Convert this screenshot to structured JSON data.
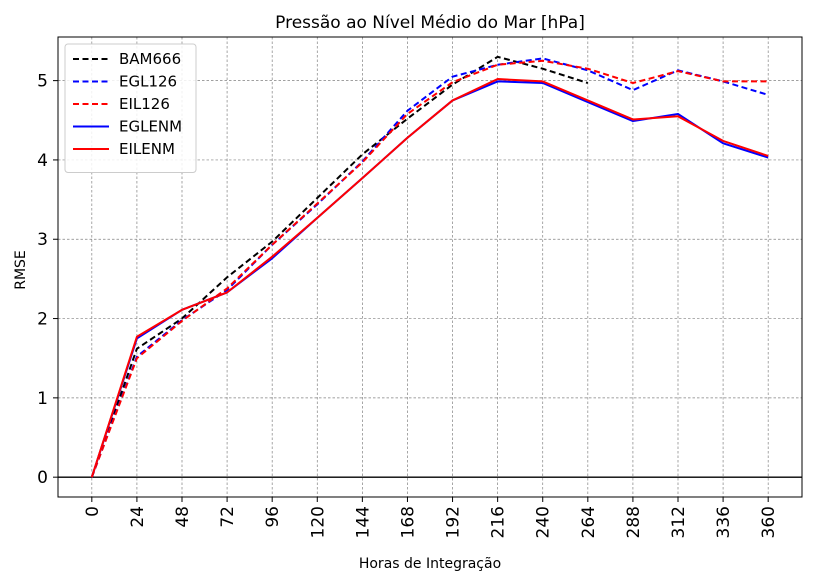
{
  "chart_data": {
    "type": "line",
    "title": "Pressão ao Nível Médio do Mar [hPa]",
    "xlabel": "Horas de Integração",
    "ylabel": "RMSE",
    "x": [
      0,
      24,
      48,
      72,
      96,
      120,
      144,
      168,
      192,
      216,
      240,
      264,
      288,
      312,
      336,
      360
    ],
    "x_tick_labels": [
      "0",
      "24",
      "48",
      "72",
      "96",
      "120",
      "144",
      "168",
      "192",
      "216",
      "240",
      "264",
      "288",
      "312",
      "336",
      "360"
    ],
    "y_ticks": [
      0,
      1,
      2,
      3,
      4,
      5
    ],
    "y_tick_labels": [
      "0",
      "1",
      "2",
      "3",
      "4",
      "5"
    ],
    "xlim": [
      -18,
      378
    ],
    "ylim": [
      -0.25,
      5.55
    ],
    "grid": true,
    "legend_position": "top-left",
    "series": [
      {
        "name": "BAM666",
        "color": "#000000",
        "style": "dashed",
        "values": [
          0,
          1.62,
          2.0,
          2.52,
          2.97,
          3.52,
          4.07,
          4.52,
          4.95,
          5.3,
          5.15,
          4.97,
          null,
          null,
          null,
          null
        ]
      },
      {
        "name": "EGL126",
        "color": "#0000ff",
        "style": "dashed",
        "values": [
          0,
          1.52,
          1.98,
          2.36,
          2.93,
          3.44,
          3.98,
          4.62,
          5.05,
          5.2,
          5.28,
          5.13,
          4.88,
          5.13,
          4.99,
          4.82
        ]
      },
      {
        "name": "EIL126",
        "color": "#ff0000",
        "style": "dashed",
        "values": [
          0,
          1.5,
          1.97,
          2.38,
          2.93,
          3.45,
          3.97,
          4.58,
          4.98,
          5.2,
          5.25,
          5.15,
          4.97,
          5.12,
          4.99,
          4.99
        ]
      },
      {
        "name": "EGLENM",
        "color": "#0000ff",
        "style": "solid",
        "values": [
          0,
          1.75,
          2.11,
          2.33,
          2.76,
          3.27,
          3.77,
          4.28,
          4.75,
          4.99,
          4.97,
          4.73,
          4.49,
          4.58,
          4.21,
          4.03
        ]
      },
      {
        "name": "EILENM",
        "color": "#ff0000",
        "style": "solid",
        "values": [
          0,
          1.77,
          2.11,
          2.33,
          2.78,
          3.27,
          3.77,
          4.28,
          4.75,
          5.02,
          4.99,
          4.75,
          4.51,
          4.55,
          4.24,
          4.05
        ]
      }
    ]
  }
}
